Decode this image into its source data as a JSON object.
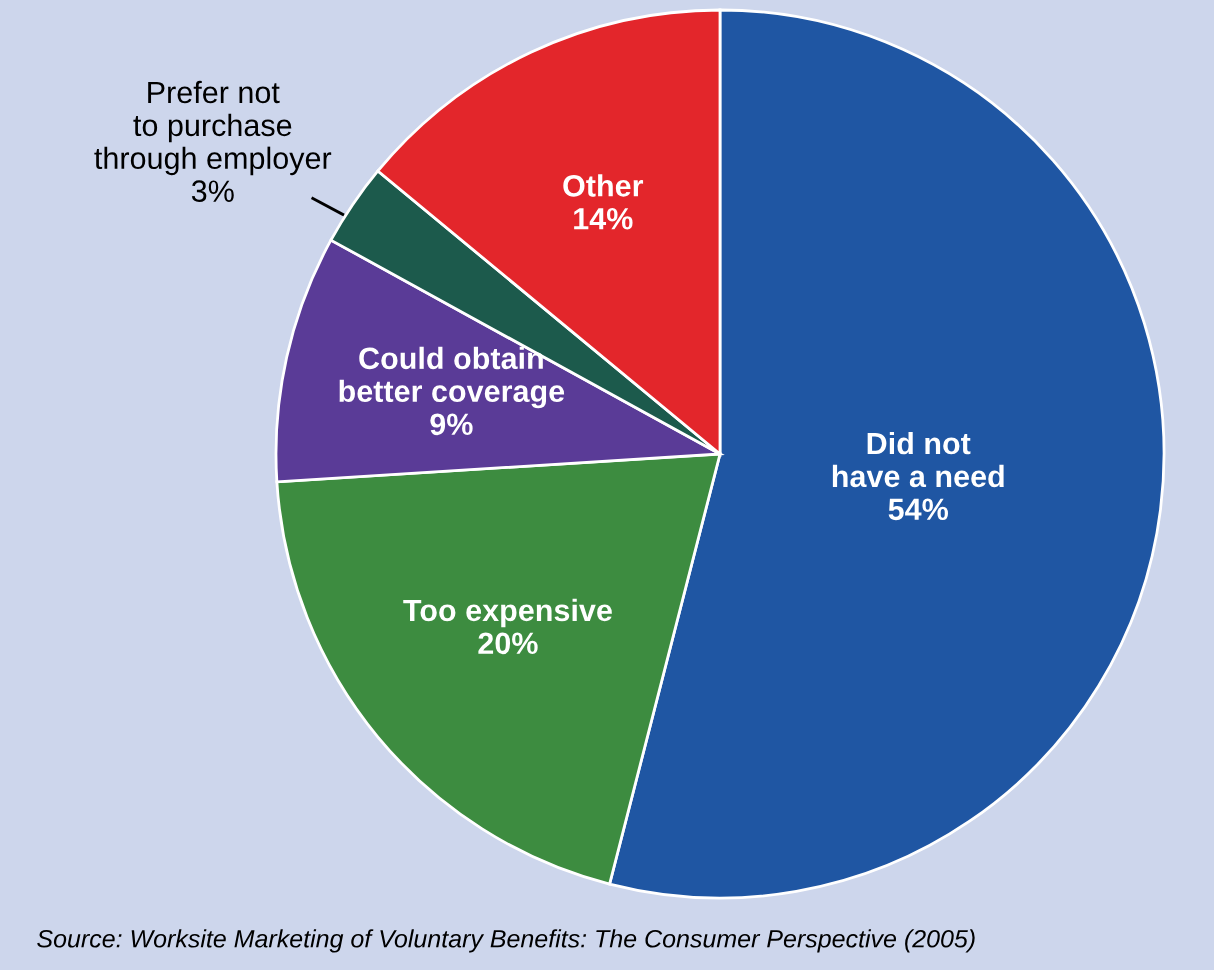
{
  "chart_data": {
    "type": "pie",
    "categories": [
      "Did not have a need",
      "Too expensive",
      "Could obtain better coverage",
      "Prefer not to purchase through employer",
      "Other"
    ],
    "values": [
      54,
      20,
      9,
      3,
      14
    ],
    "value_labels": [
      "54%",
      "20%",
      "9%",
      "3%",
      "14%"
    ],
    "colors": [
      "#1f56a3",
      "#3d8c40",
      "#5a3b97",
      "#1c5a4c",
      "#e3262b"
    ],
    "annotations": [
      "Source: Worksite Marketing of Voluntary Benefits: The Consumer Perspective (2005)"
    ]
  }
}
